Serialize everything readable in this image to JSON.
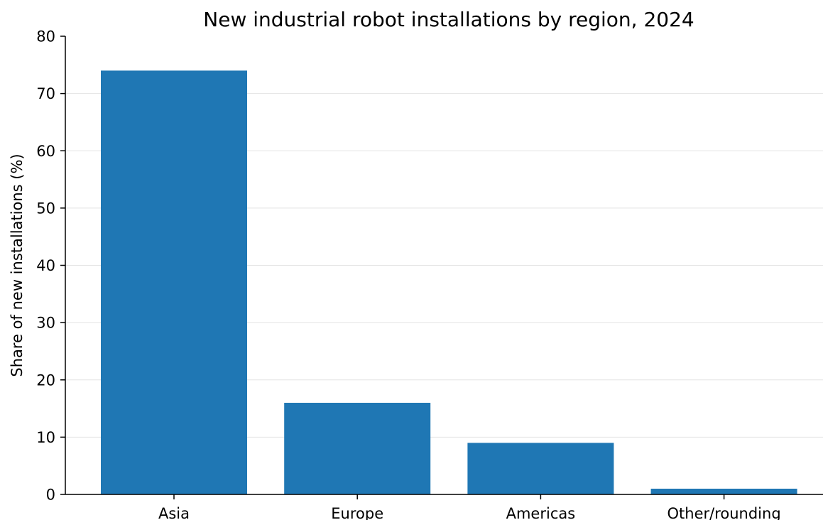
{
  "chart_data": {
    "type": "bar",
    "title": "New industrial robot installations by region, 2024",
    "xlabel": "",
    "ylabel": "Share of new installations (%)",
    "categories": [
      "Asia",
      "Europe",
      "Americas",
      "Other/rounding"
    ],
    "values": [
      74,
      16,
      9,
      1
    ],
    "ylim": [
      0,
      80
    ],
    "yticks": [
      0,
      10,
      20,
      30,
      40,
      50,
      60,
      70,
      80
    ],
    "grid": "horizontal",
    "legend": "none",
    "bar_color": "#1f77b4"
  }
}
